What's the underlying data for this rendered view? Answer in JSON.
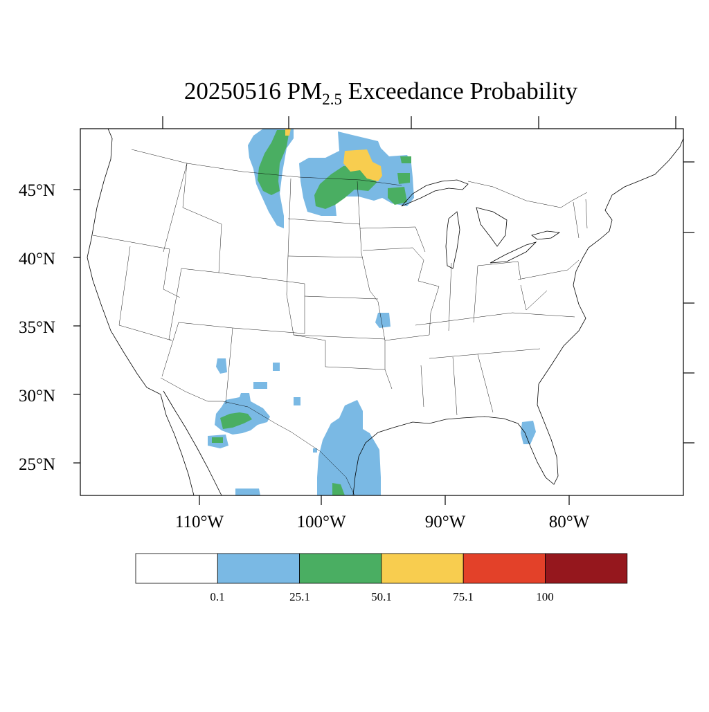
{
  "map": {
    "title": {
      "prefix": "20250516 PM",
      "subscript": "2.5",
      "suffix": " Exceedance Probability"
    },
    "projection": "lambert-conformal-conus",
    "lat_ticks": [
      "45°N",
      "40°N",
      "35°N",
      "30°N",
      "25°N"
    ],
    "lon_ticks": [
      "110°W",
      "100°W",
      "90°W",
      "80°W"
    ],
    "legend": {
      "bins": [
        {
          "color": "#ffffff"
        },
        {
          "color": "#7ab9e4"
        },
        {
          "color": "#4aae62"
        },
        {
          "color": "#f8cd4f"
        },
        {
          "color": "#e34129"
        },
        {
          "color": "#95171d"
        }
      ],
      "labels": [
        "0.1",
        "25.1",
        "50.1",
        "75.1",
        "100"
      ]
    },
    "regions": [
      {
        "name": "montana-plume",
        "level": 1,
        "lon": -104.0,
        "lat": 47.2
      },
      {
        "name": "montana-core",
        "level": 2,
        "lon": -104.3,
        "lat": 47.0
      },
      {
        "name": "north-dakota-minnesota",
        "level": 1,
        "lon": -96.5,
        "lat": 47.5
      },
      {
        "name": "north-dakota-core",
        "level": 2,
        "lon": -97.0,
        "lat": 47.2
      },
      {
        "name": "minnesota-peak",
        "level": 3,
        "lon": -95.3,
        "lat": 47.8
      },
      {
        "name": "missouri-spot",
        "level": 1,
        "lon": -94.0,
        "lat": 36.3
      },
      {
        "name": "new-mexico-spots",
        "level": 1,
        "lon": -106.0,
        "lat": 32.5
      },
      {
        "name": "chihuahua-area",
        "level": 1,
        "lon": -106.6,
        "lat": 28.5
      },
      {
        "name": "chihuahua-core",
        "level": 2,
        "lon": -106.6,
        "lat": 28.3
      },
      {
        "name": "south-texas-coast",
        "level": 1,
        "lon": -97.8,
        "lat": 27.0
      },
      {
        "name": "tamaulipas-core",
        "level": 2,
        "lon": -98.5,
        "lat": 23.3
      },
      {
        "name": "florida-spot",
        "level": 1,
        "lon": -82.2,
        "lat": 28.1
      }
    ]
  }
}
